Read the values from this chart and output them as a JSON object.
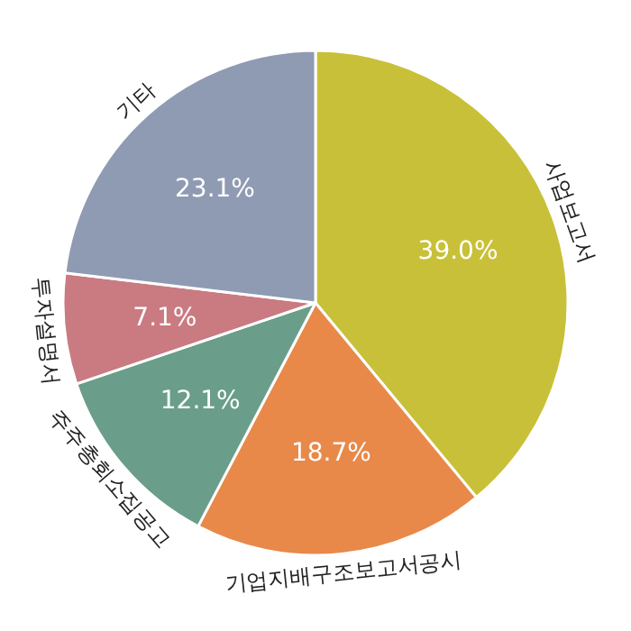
{
  "chart_data": {
    "type": "pie",
    "categories": [
      "사업보고서",
      "기업지배구조보고서공시",
      "주주총회소집공고",
      "투자설명서",
      "기타"
    ],
    "values": [
      39.0,
      18.7,
      12.1,
      7.1,
      23.1
    ],
    "value_labels": [
      "39.0%",
      "18.7%",
      "12.1%",
      "7.1%",
      "23.1%"
    ],
    "colors": [
      "#c8c038",
      "#e8894a",
      "#6a9e8a",
      "#c97b81",
      "#8f9bb3"
    ]
  }
}
